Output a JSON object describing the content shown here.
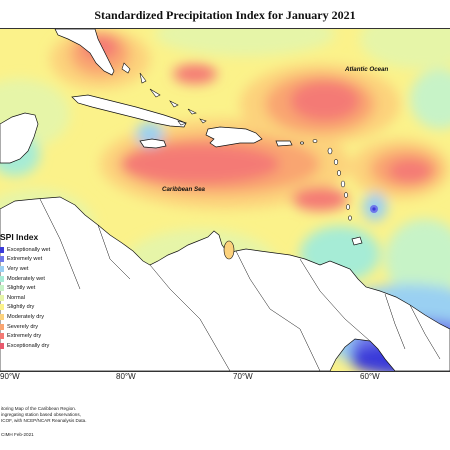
{
  "title": "Standardized Precipitation Index for January 2021",
  "labels": {
    "atlantic": "Atlantic Ocean",
    "caribbean": "Caribbean Sea"
  },
  "longitudes": [
    "90°W",
    "80°W",
    "70°W",
    "60°W"
  ],
  "legend": {
    "title": "SPI Index",
    "items": [
      {
        "label": "Exceptionally wet",
        "color": "#3b3bd9"
      },
      {
        "label": "Extremely wet",
        "color": "#6f78ea"
      },
      {
        "label": "Very wet",
        "color": "#9ad0f2"
      },
      {
        "label": "Moderately wet",
        "color": "#a6ecd6"
      },
      {
        "label": "Slightly wet",
        "color": "#c7f3c7"
      },
      {
        "label": "Normal",
        "color": "#e6f5a8"
      },
      {
        "label": "Slightly dry",
        "color": "#fbf28a"
      },
      {
        "label": "Moderately dry",
        "color": "#fcd27c"
      },
      {
        "label": "Severely dry",
        "color": "#f9a571"
      },
      {
        "label": "Extremely dry",
        "color": "#f47a74"
      },
      {
        "label": "Exceptionally dry",
        "color": "#e85a6d"
      }
    ]
  },
  "footnote": [
    "itoring Map of the Caribbean Region.",
    "ingregating station based observations,",
    "ICOF, with NCEP/NCAR Reanalysis Data."
  ],
  "credit": "CIMH Feb-2021"
}
